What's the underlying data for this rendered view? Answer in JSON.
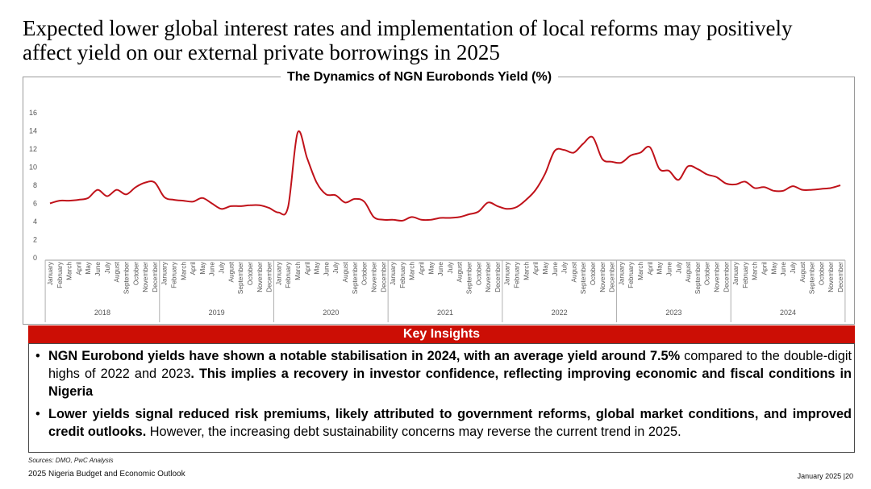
{
  "page": {
    "title": "Expected lower global interest rates and implementation of local reforms may positively affect yield on our external private borrowings in 2025"
  },
  "chart_data": {
    "type": "line",
    "title": "The Dynamics of NGN Eurobonds Yield (%)",
    "xlabel": "",
    "ylabel": "",
    "ylim": [
      0,
      16
    ],
    "yticks": [
      "0",
      "2",
      "4",
      "6",
      "8",
      "10",
      "12",
      "14",
      "16"
    ],
    "grid": false,
    "legend": "none",
    "series_color": "#c0121a",
    "months": [
      "January",
      "February",
      "March",
      "April",
      "May",
      "June",
      "July",
      "August",
      "September",
      "October",
      "November",
      "December"
    ],
    "years": [
      "2018",
      "2019",
      "2020",
      "2021",
      "2022",
      "2023",
      "2024"
    ],
    "series": [
      {
        "name": "NGN Eurobonds Yield (%)",
        "values": [
          6.0,
          6.3,
          6.3,
          6.4,
          6.6,
          7.5,
          6.8,
          7.5,
          7.0,
          7.8,
          8.3,
          8.3,
          6.7,
          6.4,
          6.3,
          6.2,
          6.6,
          6.0,
          5.4,
          5.7,
          5.7,
          5.8,
          5.8,
          5.5,
          5.0,
          5.6,
          13.8,
          11.0,
          8.3,
          7.0,
          6.9,
          6.1,
          6.5,
          6.2,
          4.5,
          4.2,
          4.2,
          4.1,
          4.5,
          4.2,
          4.2,
          4.4,
          4.4,
          4.5,
          4.8,
          5.1,
          6.1,
          5.7,
          5.4,
          5.6,
          6.4,
          7.5,
          9.3,
          11.8,
          11.9,
          11.6,
          12.6,
          13.3,
          10.9,
          10.6,
          10.5,
          11.3,
          11.6,
          12.2,
          9.8,
          9.6,
          8.6,
          10.1,
          9.8,
          9.2,
          8.9,
          8.2,
          8.1,
          8.4,
          7.7,
          7.8,
          7.4,
          7.4,
          7.9,
          7.5,
          7.5,
          7.6,
          7.7,
          8.0
        ]
      }
    ]
  },
  "insights": {
    "header": "Key Insights",
    "bullet_char": "•",
    "items": [
      {
        "b1": "NGN Eurobond yields have shown a notable stabilisation in 2024, with an average yield around 7.5%",
        "t1": " compared to the double-digit highs of 2022 and 2023",
        "b2": ". This implies a recovery in investor confidence, reflecting improving economic and fiscal conditions in Nigeria"
      },
      {
        "b1": "Lower yields signal reduced risk premiums, likely attributed to government reforms, global market conditions, and improved credit outlooks.",
        "t1": " However, the increasing debt sustainability concerns may reverse the current trend in 2025."
      }
    ]
  },
  "footer": {
    "sources": "Sources: DMO, PwC Analysis",
    "left": "2025 Nigeria Budget and Economic Outlook",
    "right": "January 2025 |20"
  }
}
